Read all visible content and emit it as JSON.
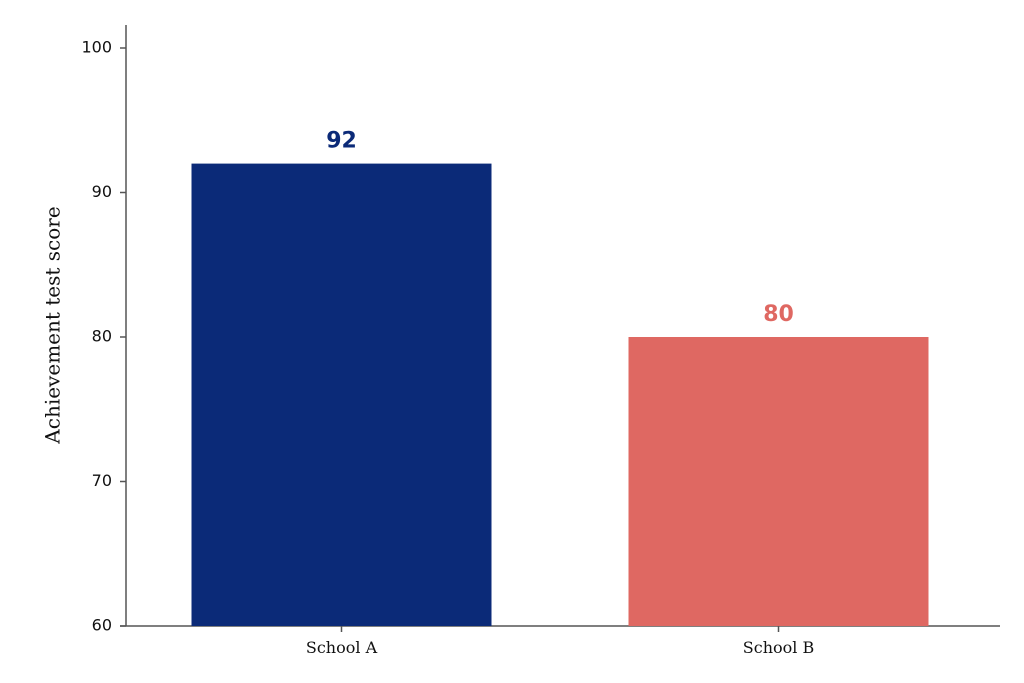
{
  "chart_data": {
    "type": "bar",
    "categories": [
      "School A",
      "School B"
    ],
    "values": [
      92,
      80
    ],
    "data_labels": [
      "92",
      "80"
    ],
    "colors": [
      "#0b2a78",
      "#df6862"
    ],
    "title": "",
    "xlabel": "",
    "ylabel": "Achievement test score",
    "ylim": [
      60,
      100
    ],
    "yticks": [
      60,
      70,
      80,
      90,
      100
    ],
    "ytick_labels": [
      "60",
      "70",
      "80",
      "90",
      "100"
    ],
    "grid": false,
    "legend": "none"
  }
}
